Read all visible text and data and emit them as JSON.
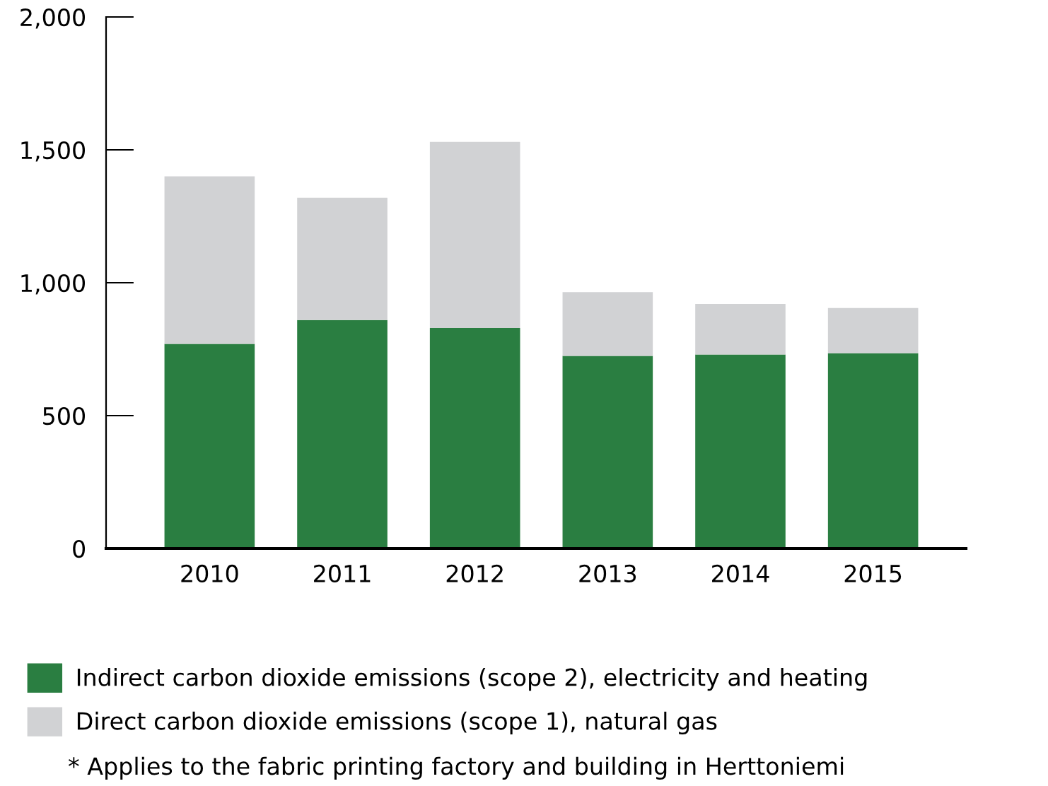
{
  "chart_data": {
    "type": "bar",
    "stacked": true,
    "categories": [
      "2010",
      "2011",
      "2012",
      "2013",
      "2014",
      "2015"
    ],
    "series": [
      {
        "name": "Indirect carbon dioxide emissions (scope 2), electricity and heating",
        "color": "#2a7e41",
        "values": [
          770,
          860,
          830,
          725,
          730,
          735
        ]
      },
      {
        "name": "Direct carbon dioxide emissions (scope 1), natural gas",
        "color": "#d1d2d4",
        "values": [
          630,
          460,
          700,
          240,
          190,
          170
        ]
      }
    ],
    "ylim": [
      0,
      2000
    ],
    "yticks": [
      {
        "value": 0,
        "label": "0"
      },
      {
        "value": 500,
        "label": "500"
      },
      {
        "value": 1000,
        "label": "1,000"
      },
      {
        "value": 1500,
        "label": "1,500"
      },
      {
        "value": 2000,
        "label": "2,000"
      }
    ],
    "grid": false,
    "legend": "bottom",
    "annotations": [
      "* Applies to the fabric printing factory and building in Herttoniemi"
    ]
  }
}
